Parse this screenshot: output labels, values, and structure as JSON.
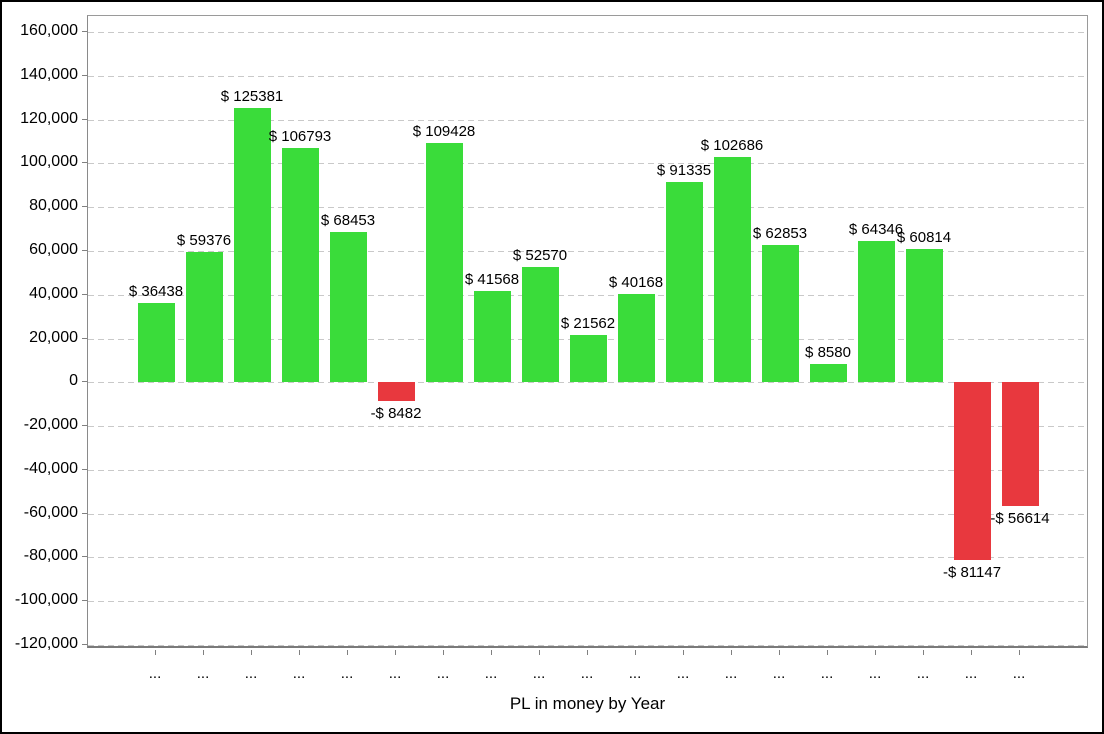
{
  "chart_data": {
    "type": "bar",
    "title": "PL in money by Year",
    "categories": [
      "...",
      "...",
      "...",
      "...",
      "...",
      "...",
      "...",
      "...",
      "...",
      "...",
      "...",
      "...",
      "...",
      "...",
      "...",
      "...",
      "...",
      "...",
      "..."
    ],
    "values": [
      36438,
      59376,
      125381,
      106793,
      68453,
      -8482,
      109428,
      41568,
      52570,
      21562,
      40168,
      91335,
      102686,
      62853,
      8580,
      64346,
      60814,
      -81147,
      -56614
    ],
    "bar_labels": [
      "$ 36438",
      "$ 59376",
      "$ 125381",
      "$ 106793",
      "$ 68453",
      "-$ 8482",
      "$ 109428",
      "$ 41568",
      "$ 52570",
      "$ 21562",
      "$ 40168",
      "$ 91335",
      "$ 102686",
      "$ 62853",
      "$ 8580",
      "$ 64346",
      "$ 60814",
      "-$ 81147",
      "-$ 56614"
    ],
    "xlabel": "PL in money by Year",
    "ylabel": "",
    "y_axis": {
      "min": -120000,
      "max": 160000,
      "step": 20000,
      "tick_labels": [
        "160,000",
        "140,000",
        "120,000",
        "100,000",
        "80,000",
        "60,000",
        "40,000",
        "20,000",
        "0",
        "-20,000",
        "-40,000",
        "-60,000",
        "-80,000",
        "-100,000",
        "-120,000"
      ]
    },
    "grid": {
      "horizontal": true,
      "style": "dashed"
    },
    "legend": {
      "shown": false
    },
    "colors": {
      "positive_bar": "#3adc3a",
      "negative_bar": "#e8383e",
      "gridline": "#c9c9c9",
      "axis": "#808080",
      "text": "#000000",
      "background": "#ffffff",
      "frame_border": "#000000"
    }
  }
}
